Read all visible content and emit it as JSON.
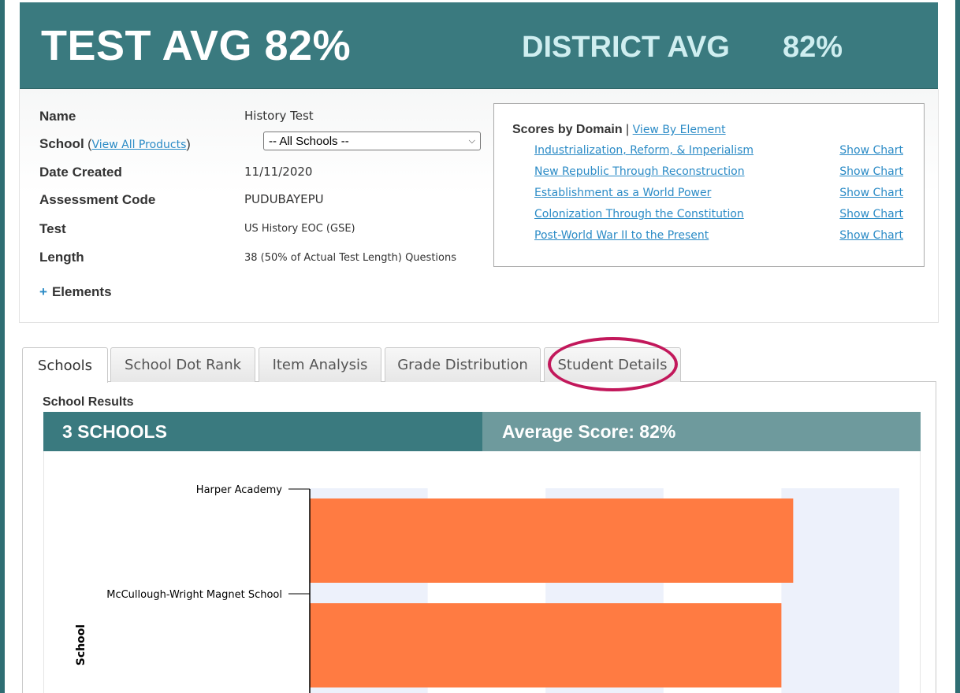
{
  "banner": {
    "test_avg": "TEST AVG 82%",
    "district_label": "DISTRICT AVG",
    "district_value": "82%"
  },
  "info": {
    "name_label": "Name",
    "name_value": "History Test",
    "school_label": "School",
    "school_link": "View All Products",
    "school_select_value": "-- All Schools --",
    "date_label": "Date Created",
    "date_value": "11/11/2020",
    "code_label": "Assessment Code",
    "code_value": "PUDUBAYEPU",
    "test_label": "Test",
    "test_value": "US History EOC (GSE)",
    "length_label": "Length",
    "length_value": "38 (50% of Actual Test Length) Questions",
    "elements_label": "Elements"
  },
  "domains": {
    "heading": "Scores by Domain",
    "view_by_element": "View By Element",
    "show_chart_label": "Show Chart",
    "items": [
      "Industrialization, Reform, & Imperialism",
      "New Republic Through Reconstruction",
      "Establishment as a World Power",
      "Colonization Through the Constitution",
      "Post-World War II to the Present"
    ]
  },
  "tabs": [
    {
      "label": "Schools",
      "active": true
    },
    {
      "label": "School Dot Rank",
      "active": false
    },
    {
      "label": "Item Analysis",
      "active": false
    },
    {
      "label": "Grade Distribution",
      "active": false
    },
    {
      "label": "Student Details",
      "active": false,
      "highlighted": true
    }
  ],
  "results": {
    "title": "School Results",
    "count_label": "3 SCHOOLS",
    "average_label": "Average Score: 82%"
  },
  "colors": {
    "banner": "#3a7a7f",
    "bar": "#ff7b42",
    "band": "#edf1fb",
    "link": "#2b8bc6",
    "highlight": "#c2185b"
  },
  "chart_data": {
    "type": "bar",
    "orientation": "horizontal",
    "ylabel": "School",
    "categories": [
      "Harper Academy",
      "McCullough-Wright Magnet School"
    ],
    "values": [
      82,
      80
    ],
    "xlim": [
      0,
      100
    ],
    "note_visible": "only 2 of 3 schools visible in cropped view"
  }
}
